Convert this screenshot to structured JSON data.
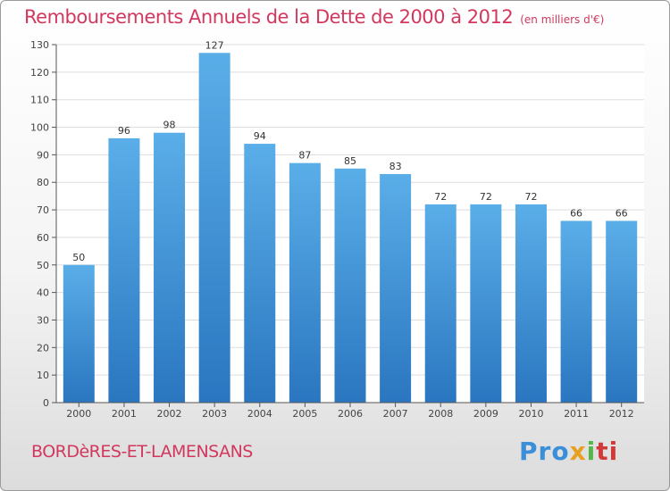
{
  "header": {
    "title": "Remboursements Annuels de la Dette de 2000 à 2012",
    "unit_note": "(en milliers d'€)"
  },
  "footer": {
    "commune": "BORDèRES-ET-LAMENSANS",
    "logo": {
      "p1": "Pro",
      "p2": "x",
      "p3": "i",
      "p4": "ti"
    }
  },
  "colors": {
    "title": "#d2385e",
    "bar_light": "#5aaee8",
    "bar_dark": "#2a76c0",
    "grid": "#dddddd"
  },
  "chart_data": {
    "type": "bar",
    "title": "Remboursements Annuels de la Dette de 2000 à 2012",
    "xlabel": "",
    "ylabel": "",
    "categories": [
      "2000",
      "2001",
      "2002",
      "2003",
      "2004",
      "2005",
      "2006",
      "2007",
      "2008",
      "2009",
      "2010",
      "2011",
      "2012"
    ],
    "values": [
      50,
      96,
      98,
      127,
      94,
      87,
      85,
      83,
      72,
      72,
      72,
      66,
      66
    ],
    "ylim": [
      0,
      130
    ],
    "yticks": [
      0,
      10,
      20,
      30,
      40,
      50,
      60,
      70,
      80,
      90,
      100,
      110,
      120,
      130
    ],
    "grid": true,
    "data_labels": true
  }
}
